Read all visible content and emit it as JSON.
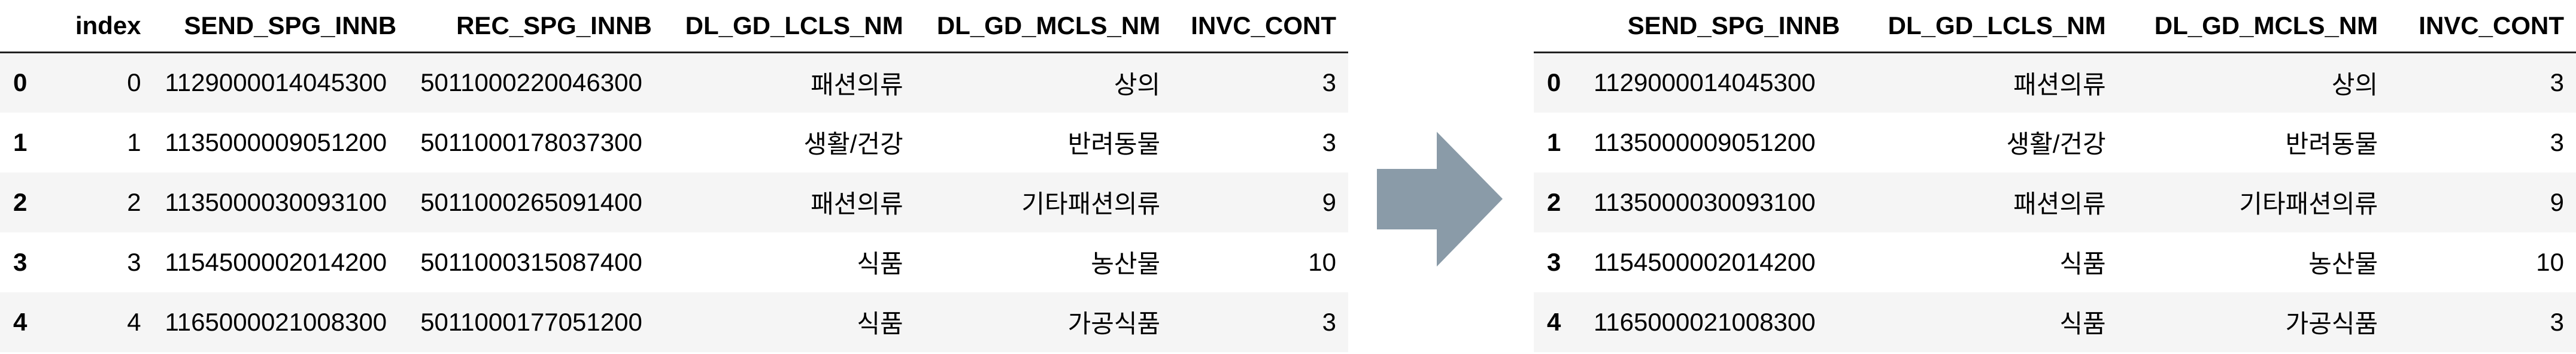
{
  "left_table": {
    "columns": [
      "",
      "index",
      "SEND_SPG_INNB",
      "REC_SPG_INNB",
      "DL_GD_LCLS_NM",
      "DL_GD_MCLS_NM",
      "INVC_CONT"
    ],
    "rows": [
      {
        "idx": "0",
        "index": "0",
        "send": "1129000014045300",
        "rec": "5011000220046300",
        "lcls": "패션의류",
        "mcls": "상의",
        "invc": "3"
      },
      {
        "idx": "1",
        "index": "1",
        "send": "1135000009051200",
        "rec": "5011000178037300",
        "lcls": "생활/건강",
        "mcls": "반려동물",
        "invc": "3"
      },
      {
        "idx": "2",
        "index": "2",
        "send": "1135000030093100",
        "rec": "5011000265091400",
        "lcls": "패션의류",
        "mcls": "기타패션의류",
        "invc": "9"
      },
      {
        "idx": "3",
        "index": "3",
        "send": "1154500002014200",
        "rec": "5011000315087400",
        "lcls": "식품",
        "mcls": "농산물",
        "invc": "10"
      },
      {
        "idx": "4",
        "index": "4",
        "send": "1165000021008300",
        "rec": "5011000177051200",
        "lcls": "식품",
        "mcls": "가공식품",
        "invc": "3"
      }
    ]
  },
  "right_table": {
    "columns": [
      "",
      "SEND_SPG_INNB",
      "DL_GD_LCLS_NM",
      "DL_GD_MCLS_NM",
      "INVC_CONT"
    ],
    "rows": [
      {
        "idx": "0",
        "send": "1129000014045300",
        "lcls": "패션의류",
        "mcls": "상의",
        "invc": "3"
      },
      {
        "idx": "1",
        "send": "1135000009051200",
        "lcls": "생활/건강",
        "mcls": "반려동물",
        "invc": "3"
      },
      {
        "idx": "2",
        "send": "1135000030093100",
        "lcls": "패션의류",
        "mcls": "기타패션의류",
        "invc": "9"
      },
      {
        "idx": "3",
        "send": "1154500002014200",
        "lcls": "식품",
        "mcls": "농산물",
        "invc": "10"
      },
      {
        "idx": "4",
        "send": "1165000021008300",
        "lcls": "식품",
        "mcls": "가공식품",
        "invc": "3"
      }
    ]
  },
  "arrow_color": "#8a9ba8"
}
